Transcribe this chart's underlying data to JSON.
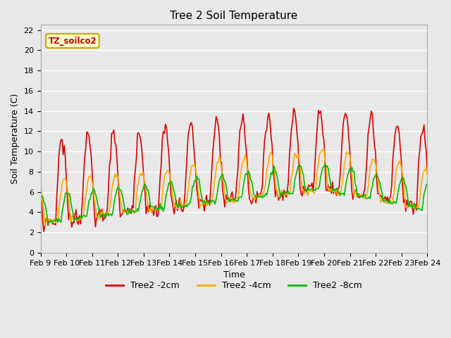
{
  "title": "Tree 2 Soil Temperature",
  "xlabel": "Time",
  "ylabel": "Soil Temperature (C)",
  "annotation": "TZ_soilco2",
  "annotation_color": "#cc0000",
  "annotation_bg": "#ffffcc",
  "annotation_border": "#ccaa00",
  "ylim": [
    0,
    22.5
  ],
  "yticks": [
    0,
    2,
    4,
    6,
    8,
    10,
    12,
    14,
    16,
    18,
    20,
    22
  ],
  "xtick_labels": [
    "Feb 9",
    "Feb 10",
    "Feb 11",
    "Feb 12",
    "Feb 13",
    "Feb 14",
    "Feb 15",
    "Feb 16",
    "Feb 17",
    "Feb 18",
    "Feb 19",
    "Feb 20",
    "Feb 21",
    "Feb 22",
    "Feb 23",
    "Feb 24"
  ],
  "legend_labels": [
    "Tree2 -2cm",
    "Tree2 -4cm",
    "Tree2 -8cm"
  ],
  "legend_colors": [
    "#dd0000",
    "#ffaa00",
    "#00bb00"
  ],
  "background_color": "#e8e8e8",
  "plot_bg_color": "#e8e8e8",
  "grid_color": "#ffffff",
  "line_width": 1.2
}
